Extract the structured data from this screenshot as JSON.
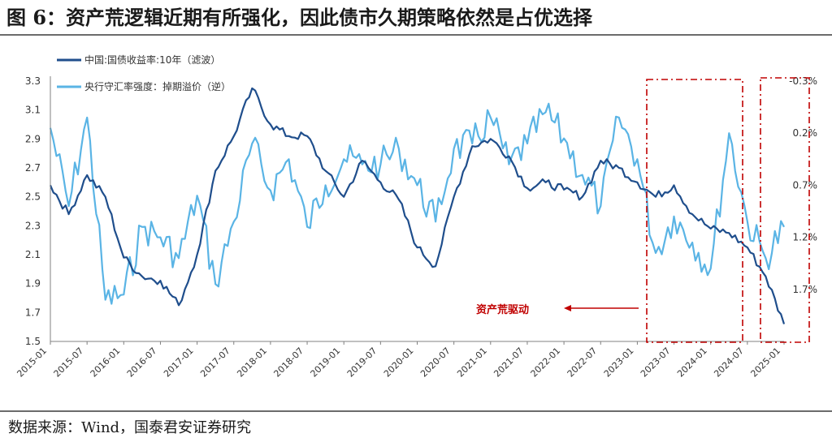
{
  "title": "图 6：资产荒逻辑近期有所强化，因此债市久期策略依然是占优选择",
  "source": "数据来源：Wind，国泰君安证券研究",
  "colors": {
    "series1": "#1f4e8c",
    "series2": "#5ab4e5",
    "annotation": "#c00000",
    "axis": "#808080"
  },
  "chart_data": {
    "type": "line",
    "x_labels": [
      "2015-01",
      "2015-07",
      "2016-01",
      "2016-07",
      "2017-01",
      "2017-07",
      "2018-01",
      "2018-07",
      "2019-01",
      "2019-07",
      "2020-01",
      "2020-07",
      "2021-01",
      "2021-07",
      "2022-01",
      "2022-07",
      "2023-01",
      "2023-07",
      "2024-01",
      "2024-07",
      "2025-01"
    ],
    "y_left": {
      "ticks": [
        "3.3",
        "3.1",
        "2.9",
        "2.7",
        "2.5",
        "2.3",
        "2.1",
        "1.9",
        "1.7",
        "1.5"
      ],
      "range": [
        1.5,
        3.3
      ]
    },
    "y_right": {
      "ticks": [
        "-0.3%",
        "0.2%",
        "0.7%",
        "1.2%",
        "1.7%"
      ],
      "range": [
        -0.3,
        2.2
      ],
      "inverted": true
    },
    "series": [
      {
        "name": "中国:国债收益率:10年（滤波）",
        "axis": "left",
        "x": [
          0,
          0.25,
          0.5,
          0.75,
          1,
          1.25,
          1.5,
          1.75,
          2,
          2.25,
          2.5,
          2.75,
          3,
          3.25,
          3.5,
          3.75,
          4,
          4.25,
          4.5,
          4.75,
          5,
          5.25,
          5.5,
          5.75,
          6,
          6.25,
          6.5,
          6.75,
          7,
          7.25,
          7.5,
          7.75,
          8,
          8.25,
          8.5,
          8.75,
          9,
          9.25,
          9.5,
          9.75,
          10
        ],
        "values": [
          2.58,
          2.38,
          2.65,
          2.5,
          2.08,
          1.95,
          1.92,
          1.75,
          2.1,
          2.68,
          2.92,
          3.25,
          3.0,
          2.92,
          2.92,
          2.68,
          2.5,
          2.75,
          2.6,
          2.48,
          2.15,
          2.02,
          2.5,
          2.85,
          2.9,
          2.78,
          2.56,
          2.6,
          2.55,
          2.5,
          2.75,
          2.7,
          2.6,
          2.5,
          2.58,
          2.38,
          2.28,
          2.25,
          2.15,
          1.95,
          1.62
        ]
      },
      {
        "name": "央行守汇率强度：掉期溢价（逆）",
        "axis": "right",
        "x": [
          0,
          0.25,
          0.5,
          0.75,
          1,
          1.25,
          1.5,
          1.75,
          2,
          2.25,
          2.5,
          2.75,
          3,
          3.25,
          3.5,
          3.75,
          4,
          4.25,
          4.5,
          4.75,
          5,
          5.25,
          5.5,
          5.75,
          6,
          6.25,
          6.5,
          6.75,
          7,
          7.25,
          7.5,
          7.75,
          8,
          8.25,
          8.5,
          8.75,
          9,
          9.25,
          9.5,
          9.75,
          10
        ],
        "values": [
          0.15,
          0.9,
          0.05,
          1.8,
          1.75,
          1.1,
          1.2,
          1.4,
          0.8,
          1.65,
          1.05,
          0.3,
          0.75,
          0.45,
          1.1,
          0.7,
          0.45,
          0.5,
          0.5,
          0.35,
          0.7,
          1.05,
          0.35,
          0.3,
          0.05,
          0.5,
          0.3,
          0.0,
          0.25,
          0.6,
          0.9,
          0.05,
          0.45,
          1.35,
          1.0,
          1.25,
          1.5,
          0.2,
          1.05,
          1.4,
          1.1
        ]
      }
    ],
    "annotation": {
      "text": "资产荒驱动"
    }
  }
}
